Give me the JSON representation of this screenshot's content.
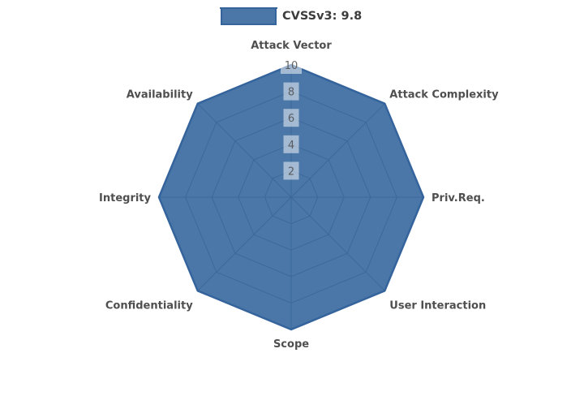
{
  "chart": {
    "legend": {
      "label": "CVSSv3: 9.8"
    }
  },
  "chart_data": {
    "type": "radar",
    "title": "",
    "legend_entries": [
      "CVSSv3: 9.8"
    ],
    "legend_position": "top-center",
    "categories": [
      "Attack Vector",
      "Attack Complexity",
      "Priv.Req.",
      "User Interaction",
      "Scope",
      "Confidentiality",
      "Integrity",
      "Availability"
    ],
    "series": [
      {
        "name": "CVSSv3: 9.8",
        "values": [
          10,
          10,
          10,
          10,
          10,
          10,
          10,
          10
        ]
      }
    ],
    "rmin": 0,
    "rmax": 10,
    "radial_ticks": [
      2,
      4,
      6,
      8,
      10
    ],
    "grid": true,
    "colors": {
      "fill": "#2a5f99",
      "fill_opacity": 0.85,
      "line": "#35649c",
      "grid": "#999999",
      "tick_box": "#ffffff",
      "tick_box_opacity": 0.5,
      "tick_text": "#4d4d4d",
      "label_text": "#4f4f4f",
      "legend_fill": "#4a77a8"
    },
    "layout": {
      "center": [
        359,
        243
      ],
      "radius_px": 163
    }
  }
}
